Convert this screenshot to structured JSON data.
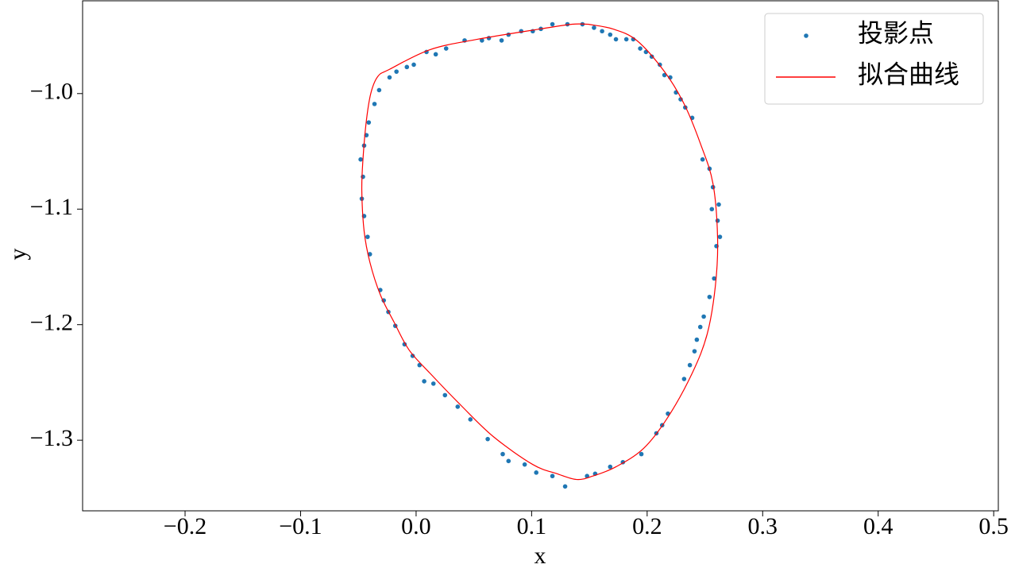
{
  "chart_data": {
    "type": "scatter",
    "xlabel": "x",
    "ylabel": "y",
    "xlim": [
      -0.2887,
      0.504
    ],
    "ylim": [
      -1.3611,
      -0.9197
    ],
    "xticks": [
      {
        "value": -0.2,
        "label": "−0.2"
      },
      {
        "value": -0.1,
        "label": "−0.1"
      },
      {
        "value": 0,
        "label": "0.0"
      },
      0.1,
      0.2,
      0.3,
      0.4,
      0.5
    ],
    "yticks": [
      {
        "value": -1.0,
        "label": "−1.0"
      },
      {
        "value": -1.1,
        "label": "−1.1"
      },
      {
        "value": -1.2,
        "label": "−1.2"
      },
      {
        "value": -1.3,
        "label": "−1.3"
      }
    ],
    "legend": "upper right",
    "series": [
      {
        "name": "投影点",
        "type": "scatter",
        "color": "#1f77b4",
        "x": [
          0.118,
          0.131,
          0.144,
          0.154,
          0.161,
          0.168,
          0.173,
          0.182,
          0.188,
          0.194,
          0.199,
          0.204,
          0.211,
          0.215,
          0.22,
          0.225,
          0.229,
          0.233,
          0.239,
          0.248,
          0.254,
          0.257,
          0.256,
          0.262,
          0.261,
          0.263,
          0.26,
          0.258,
          0.254,
          0.249,
          0.246,
          0.243,
          0.241,
          0.237,
          0.232,
          0.218,
          0.213,
          0.208,
          0.195,
          0.179,
          0.168,
          0.155,
          0.148,
          0.129,
          0.118,
          0.104,
          0.094,
          0.08,
          0.075,
          0.062,
          0.047,
          0.036,
          0.025,
          0.015,
          0.007,
          0.003,
          -0.003,
          -0.01,
          -0.018,
          -0.024,
          -0.028,
          -0.031,
          -0.04,
          -0.042,
          -0.045,
          -0.047,
          -0.046,
          -0.048,
          -0.045,
          -0.043,
          -0.041,
          -0.036,
          -0.032,
          -0.023,
          -0.017,
          -0.008,
          -0.002,
          0.009,
          0.017,
          0.026,
          0.042,
          0.057,
          0.063,
          0.074,
          0.08,
          0.091,
          0.101,
          0.108
        ],
        "values": [
          -0.94,
          -0.94,
          -0.94,
          -0.943,
          -0.946,
          -0.949,
          -0.953,
          -0.953,
          -0.953,
          -0.961,
          -0.964,
          -0.968,
          -0.975,
          -0.984,
          -0.986,
          -0.999,
          -1.005,
          -1.012,
          -1.021,
          -1.057,
          -1.065,
          -1.081,
          -1.1,
          -1.096,
          -1.11,
          -1.124,
          -1.132,
          -1.16,
          -1.176,
          -1.193,
          -1.202,
          -1.213,
          -1.223,
          -1.235,
          -1.247,
          -1.277,
          -1.287,
          -1.294,
          -1.312,
          -1.319,
          -1.323,
          -1.329,
          -1.331,
          -1.34,
          -1.331,
          -1.328,
          -1.321,
          -1.318,
          -1.312,
          -1.299,
          -1.282,
          -1.271,
          -1.261,
          -1.251,
          -1.249,
          -1.235,
          -1.227,
          -1.217,
          -1.201,
          -1.189,
          -1.179,
          -1.17,
          -1.139,
          -1.124,
          -1.106,
          -1.091,
          -1.072,
          -1.057,
          -1.045,
          -1.036,
          -1.025,
          -1.009,
          -0.997,
          -0.986,
          -0.981,
          -0.977,
          -0.975,
          -0.964,
          -0.966,
          -0.961,
          -0.954,
          -0.954,
          -0.952,
          -0.954,
          -0.949,
          -0.946,
          -0.946,
          -0.944
        ]
      },
      {
        "name": "拟合曲线",
        "type": "line",
        "color": "#ff0000",
        "x": [
          0.149,
          0.135,
          0.108,
          0.053,
          0.012,
          -0.023,
          -0.033,
          -0.039,
          -0.043,
          -0.046,
          -0.047,
          -0.045,
          -0.04,
          -0.031,
          -0.019,
          -0.006,
          0.012,
          0.039,
          0.067,
          0.101,
          0.122,
          0.139,
          0.153,
          0.173,
          0.197,
          0.218,
          0.239,
          0.252,
          0.259,
          0.261,
          0.257,
          0.246,
          0.232,
          0.215,
          0.191,
          0.17,
          0.149
        ],
        "values": [
          -0.94,
          -0.94,
          -0.944,
          -0.953,
          -0.962,
          -0.979,
          -0.985,
          -0.999,
          -1.023,
          -1.057,
          -1.084,
          -1.119,
          -1.146,
          -1.174,
          -1.198,
          -1.222,
          -1.242,
          -1.27,
          -1.297,
          -1.321,
          -1.329,
          -1.334,
          -1.331,
          -1.323,
          -1.307,
          -1.28,
          -1.242,
          -1.208,
          -1.167,
          -1.126,
          -1.078,
          -1.043,
          -1.009,
          -0.981,
          -0.954,
          -0.944,
          -0.94
        ]
      }
    ]
  }
}
